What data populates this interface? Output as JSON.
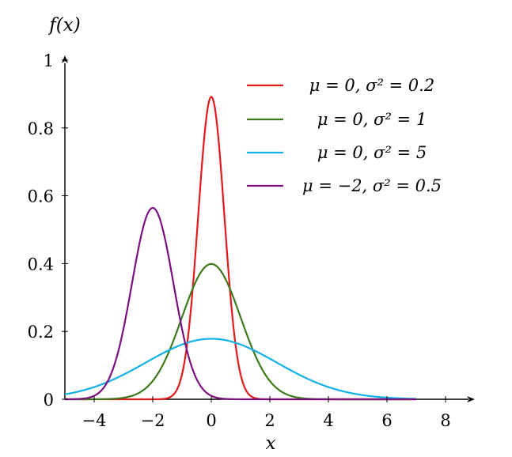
{
  "chart_data": {
    "type": "line",
    "title": "",
    "xlabel": "x",
    "ylabel": "f(x)",
    "xlim": [
      -5,
      9
    ],
    "ylim": [
      0,
      1
    ],
    "x_ticks": [
      -4,
      -2,
      0,
      2,
      4,
      6,
      8
    ],
    "x_tick_labels": [
      "−4",
      "−2",
      "0",
      "2",
      "4",
      "6",
      "8"
    ],
    "y_ticks": [
      0,
      0.2,
      0.4,
      0.6,
      0.8,
      1
    ],
    "y_tick_labels": [
      "0",
      "0.2",
      "0.4",
      "0.6",
      "0.8",
      "1"
    ],
    "grid": false,
    "legend_position": "top-right",
    "series": [
      {
        "name": "μ = 0, σ² = 0.2",
        "color": "#e41a1c",
        "mu": 0,
        "variance": 0.2,
        "x": [
          -5,
          -2,
          -1.5,
          -1,
          -0.5,
          0,
          0.5,
          1,
          1.5,
          2,
          7
        ],
        "y": [
          0,
          0.0,
          0.0033,
          0.0731,
          0.4841,
          0.8921,
          0.4841,
          0.0731,
          0.0033,
          0.0,
          0
        ]
      },
      {
        "name": "μ = 0, σ² = 1",
        "color": "#3c7a1e",
        "mu": 0,
        "variance": 1,
        "x": [
          -5,
          -4,
          -3,
          -2,
          -1,
          0,
          1,
          2,
          3,
          4,
          7
        ],
        "y": [
          0.0,
          0.0001,
          0.0044,
          0.054,
          0.242,
          0.3989,
          0.242,
          0.054,
          0.0044,
          0.0001,
          0.0
        ]
      },
      {
        "name": "μ = 0, σ² = 5",
        "color": "#12b0e8",
        "mu": 0,
        "variance": 5,
        "x": [
          -5,
          -4,
          -3,
          -2,
          -1,
          0,
          1,
          2,
          3,
          4,
          5,
          6,
          7
        ],
        "y": [
          0.0146,
          0.0361,
          0.0727,
          0.1196,
          0.1614,
          0.1784,
          0.1614,
          0.1196,
          0.0727,
          0.0361,
          0.0146,
          0.0049,
          0.0013
        ]
      },
      {
        "name": "μ = −2, σ² = 0.5",
        "color": "#7b117f",
        "mu": -2,
        "variance": 0.5,
        "x": [
          -5,
          -4,
          -3,
          -2.5,
          -2,
          -1.5,
          -1,
          0,
          1,
          7
        ],
        "y": [
          0.0,
          0.0103,
          0.1038,
          0.4394,
          0.5642,
          0.4394,
          0.1038,
          0.0103,
          0.0,
          0.0
        ]
      }
    ]
  }
}
